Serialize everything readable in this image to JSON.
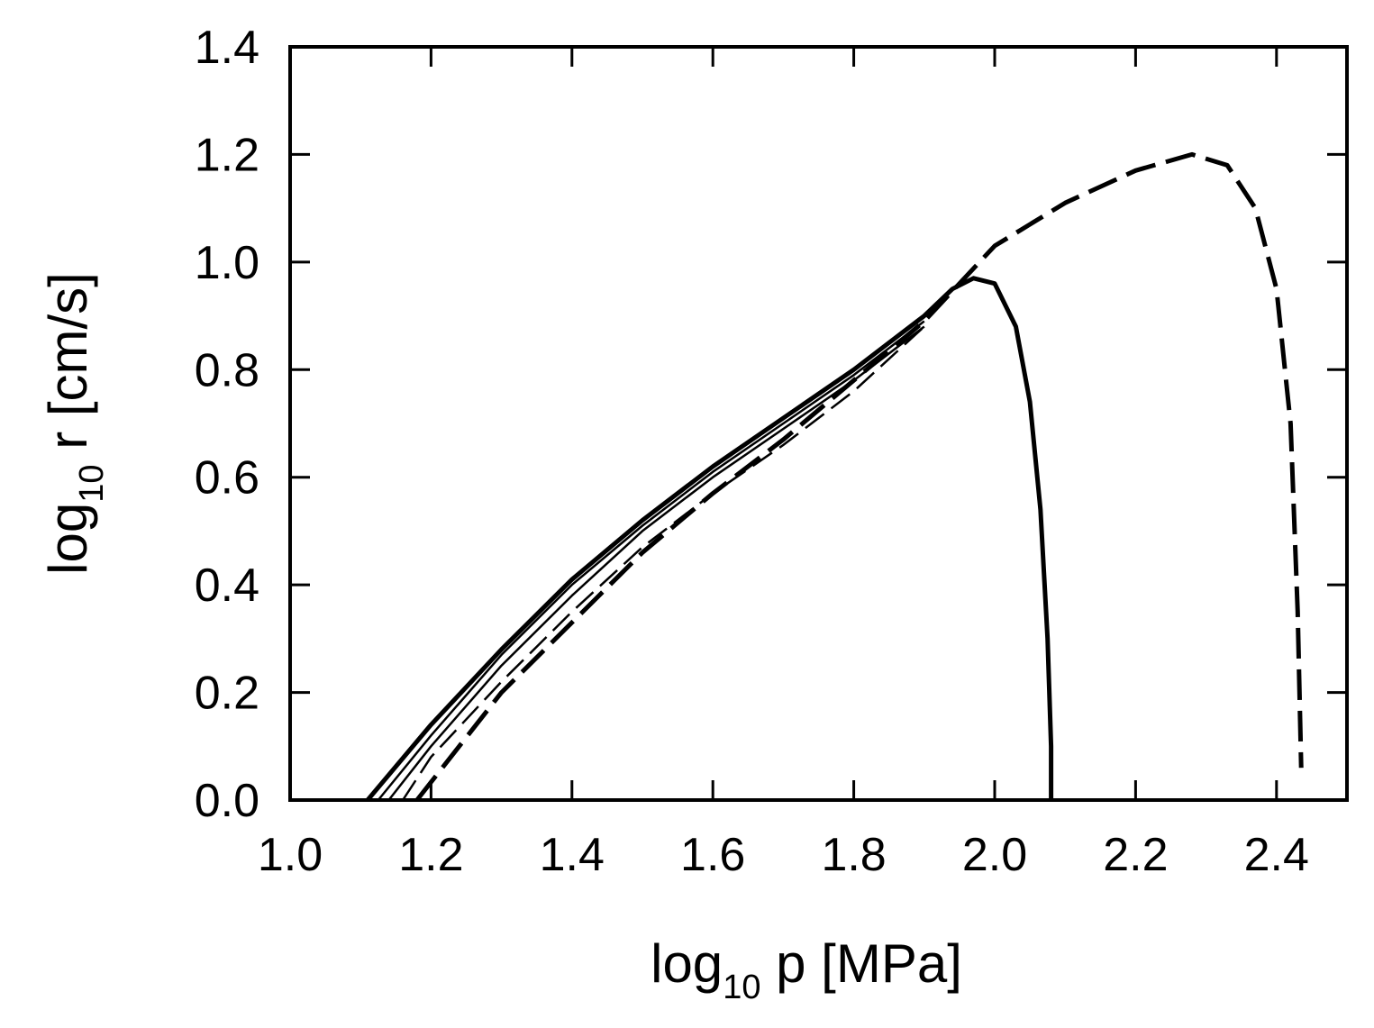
{
  "chart_data": {
    "type": "line",
    "title": "",
    "xlabel": {
      "prefix": "log",
      "subscript": "10",
      "suffix": " p [MPa]"
    },
    "ylabel": {
      "prefix": "log",
      "subscript": "10",
      "suffix": " r [cm/s]"
    },
    "xlim": [
      1.0,
      2.5
    ],
    "ylim": [
      0.0,
      1.4
    ],
    "xticks": [
      "1.0",
      "1.2",
      "1.4",
      "1.6",
      "1.8",
      "2.0",
      "2.2",
      "2.4"
    ],
    "yticks": [
      "0.0",
      "0.2",
      "0.4",
      "0.6",
      "0.8",
      "1.0",
      "1.2",
      "1.4"
    ],
    "grid": false,
    "legend": "none",
    "series": [
      {
        "style": "solid",
        "width": "thick",
        "x": [
          1.11,
          1.2,
          1.3,
          1.4,
          1.5,
          1.6,
          1.7,
          1.8,
          1.9,
          1.94,
          1.97,
          2.0,
          2.03,
          2.05,
          2.065,
          2.075,
          2.08,
          2.08
        ],
        "y": [
          0.0,
          0.14,
          0.28,
          0.41,
          0.52,
          0.62,
          0.71,
          0.8,
          0.9,
          0.95,
          0.97,
          0.96,
          0.88,
          0.74,
          0.54,
          0.3,
          0.1,
          0.0
        ]
      },
      {
        "style": "solid",
        "width": "thin",
        "x": [
          1.125,
          1.2,
          1.3,
          1.4,
          1.5,
          1.6,
          1.7,
          1.8,
          1.9
        ],
        "y": [
          0.0,
          0.12,
          0.27,
          0.4,
          0.51,
          0.61,
          0.7,
          0.79,
          0.89
        ]
      },
      {
        "style": "solid",
        "width": "thin",
        "x": [
          1.14,
          1.2,
          1.3,
          1.4,
          1.5,
          1.6,
          1.7,
          1.8,
          1.9
        ],
        "y": [
          0.0,
          0.1,
          0.25,
          0.38,
          0.5,
          0.6,
          0.69,
          0.78,
          0.88
        ]
      },
      {
        "style": "dashed",
        "width": "thin",
        "x": [
          1.16,
          1.2,
          1.3,
          1.4,
          1.5,
          1.6,
          1.7,
          1.8,
          1.9
        ],
        "y": [
          0.0,
          0.08,
          0.22,
          0.35,
          0.47,
          0.57,
          0.66,
          0.76,
          0.88
        ]
      },
      {
        "style": "dashed",
        "width": "thick",
        "x": [
          1.18,
          1.3,
          1.4,
          1.5,
          1.6,
          1.7,
          1.8,
          1.9,
          2.0,
          2.1,
          2.2,
          2.28,
          2.33,
          2.37,
          2.4,
          2.42,
          2.43,
          2.435
        ],
        "y": [
          0.0,
          0.2,
          0.33,
          0.46,
          0.57,
          0.67,
          0.78,
          0.89,
          1.03,
          1.11,
          1.17,
          1.2,
          1.18,
          1.1,
          0.95,
          0.7,
          0.35,
          0.06
        ]
      }
    ]
  }
}
